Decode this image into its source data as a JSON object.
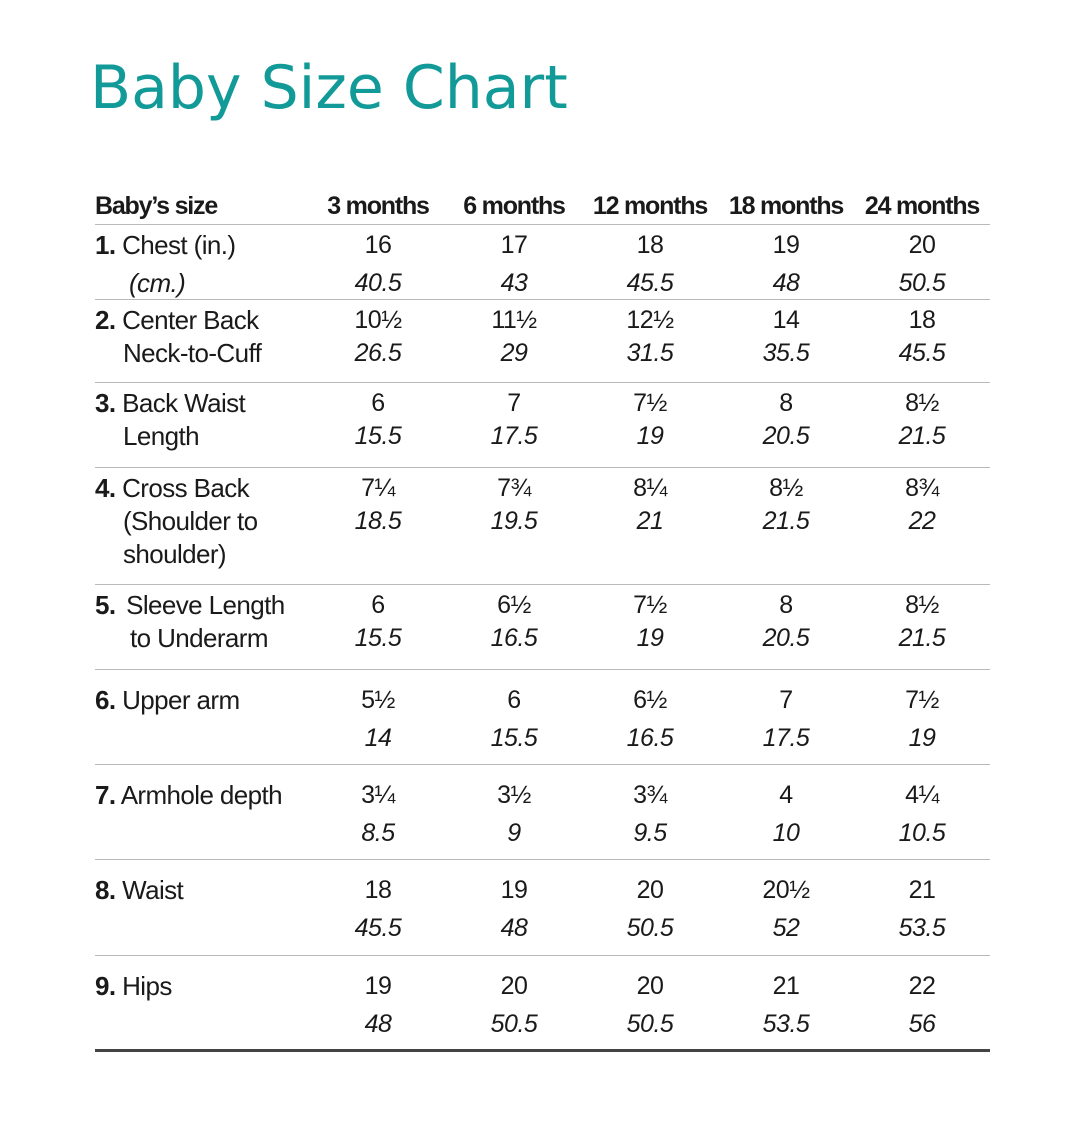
{
  "title": "Baby Size Chart",
  "colors": {
    "title": "#129a98",
    "rule": "#b9b9b9",
    "bottom_rule": "#444444"
  },
  "header": {
    "label": "Baby’s size",
    "sizes": [
      "3 months",
      "6 months",
      "12 months",
      "18 months",
      "24 months"
    ]
  },
  "rows": [
    {
      "num": "1.",
      "label_lines": [
        "Chest (in.)",
        "(cm.)"
      ],
      "in": [
        "16",
        "17",
        "18",
        "19",
        "20"
      ],
      "cm": [
        "40.5",
        "43",
        "45.5",
        "48",
        "50.5"
      ]
    },
    {
      "num": "2.",
      "label_lines": [
        "Center Back",
        "Neck-to-Cuff"
      ],
      "in": [
        "10½",
        "11½",
        "12½",
        "14",
        "18"
      ],
      "cm": [
        "26.5",
        "29",
        "31.5",
        "35.5",
        "45.5"
      ]
    },
    {
      "num": "3.",
      "label_lines": [
        "Back Waist",
        "Length"
      ],
      "in": [
        "6",
        "7",
        "7½",
        "8",
        "8½"
      ],
      "cm": [
        "15.5",
        "17.5",
        "19",
        "20.5",
        "21.5"
      ]
    },
    {
      "num": "4.",
      "label_lines": [
        "Cross Back",
        "(Shoulder to",
        "shoulder)"
      ],
      "in": [
        "7¼",
        "7¾",
        "8¼",
        "8½",
        "8¾"
      ],
      "cm": [
        "18.5",
        "19.5",
        "21",
        "21.5",
        "22"
      ]
    },
    {
      "num": "5.",
      "label_lines": [
        "Sleeve Length",
        "to Underarm"
      ],
      "in": [
        "6",
        "6½",
        "7½",
        "8",
        "8½"
      ],
      "cm": [
        "15.5",
        "16.5",
        "19",
        "20.5",
        "21.5"
      ]
    },
    {
      "num": "6.",
      "label_lines": [
        "Upper arm"
      ],
      "in": [
        "5½",
        "6",
        "6½",
        "7",
        "7½"
      ],
      "cm": [
        "14",
        "15.5",
        "16.5",
        "17.5",
        "19"
      ]
    },
    {
      "num": "7.",
      "label_lines": [
        "Armhole depth"
      ],
      "in": [
        "3¼",
        "3½",
        "3¾",
        "4",
        "4¼"
      ],
      "cm": [
        "8.5",
        "9",
        "9.5",
        "10",
        "10.5"
      ]
    },
    {
      "num": "8.",
      "label_lines": [
        "Waist"
      ],
      "in": [
        "18",
        "19",
        "20",
        "20½",
        "21"
      ],
      "cm": [
        "45.5",
        "48",
        "50.5",
        "52",
        "53.5"
      ]
    },
    {
      "num": "9.",
      "label_lines": [
        "Hips"
      ],
      "in": [
        "19",
        "20",
        "20",
        "21",
        "22"
      ],
      "cm": [
        "48",
        "50.5",
        "50.5",
        "53.5",
        "56"
      ]
    }
  ]
}
